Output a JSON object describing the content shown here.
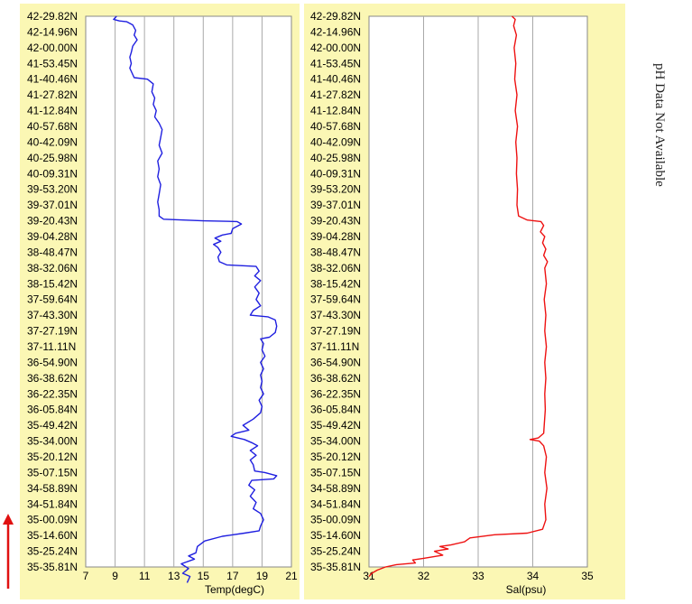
{
  "chart_data": [
    {
      "type": "line",
      "orientation": "vertical-profile",
      "xlabel": "Temp(degC)",
      "xlim": [
        7,
        21
      ],
      "xticks": [
        7,
        9,
        11,
        13,
        15,
        17,
        19,
        21
      ],
      "grid": "vertical",
      "background": "#fbf7b4",
      "line_color": "#1f1fe0",
      "y_tick_labels": [
        "42-29.82N",
        "42-14.96N",
        "42-00.00N",
        "41-53.45N",
        "41-40.46N",
        "41-27.82N",
        "41-12.84N",
        "40-57.68N",
        "40-42.09N",
        "40-25.98N",
        "40-09.31N",
        "39-53.20N",
        "39-37.01N",
        "39-20.43N",
        "39-04.28N",
        "38-48.47N",
        "38-32.06N",
        "38-15.42N",
        "37-59.64N",
        "37-43.30N",
        "37-27.19N",
        "37-11.11N",
        "36-54.90N",
        "36-38.62N",
        "36-22.35N",
        "36-05.84N",
        "35-49.42N",
        "35-34.00N",
        "35-20.12N",
        "35-07.15N",
        "34-58.89N",
        "34-51.84N",
        "35-00.09N",
        "35-14.60N",
        "35-25.24N",
        "35-35.81N"
      ],
      "series": [
        {
          "values": [
            [
              9.1,
              0
            ],
            [
              8.9,
              0.2
            ],
            [
              9.3,
              0.3
            ],
            [
              9.8,
              0.35
            ],
            [
              10.2,
              0.55
            ],
            [
              10.4,
              0.9
            ],
            [
              10.3,
              1.2
            ],
            [
              10.5,
              1.5
            ],
            [
              10.2,
              1.9
            ],
            [
              10.1,
              2.3
            ],
            [
              10.0,
              2.6
            ],
            [
              10.1,
              3.0
            ],
            [
              10.0,
              3.3
            ],
            [
              10.2,
              3.7
            ],
            [
              10.3,
              3.9
            ],
            [
              11.2,
              4.0
            ],
            [
              11.6,
              4.3
            ],
            [
              11.5,
              4.8
            ],
            [
              11.7,
              5.2
            ],
            [
              11.6,
              5.6
            ],
            [
              11.8,
              6.0
            ],
            [
              11.7,
              6.4
            ],
            [
              12.0,
              6.8
            ],
            [
              12.2,
              7.2
            ],
            [
              12.1,
              7.7
            ],
            [
              12.0,
              8.2
            ],
            [
              12.2,
              8.7
            ],
            [
              11.9,
              9.2
            ],
            [
              12.0,
              9.7
            ],
            [
              11.9,
              10.2
            ],
            [
              12.1,
              10.7
            ],
            [
              12.0,
              11.3
            ],
            [
              11.9,
              11.8
            ],
            [
              12.0,
              12.3
            ],
            [
              12.0,
              12.7
            ],
            [
              12.3,
              12.9
            ],
            [
              15.0,
              13.0
            ],
            [
              17.3,
              13.05
            ],
            [
              17.6,
              13.2
            ],
            [
              17.0,
              13.5
            ],
            [
              16.9,
              13.8
            ],
            [
              16.3,
              13.9
            ],
            [
              15.8,
              14.1
            ],
            [
              16.2,
              14.3
            ],
            [
              15.7,
              14.5
            ],
            [
              16.0,
              14.7
            ],
            [
              16.2,
              15.0
            ],
            [
              16.0,
              15.3
            ],
            [
              16.1,
              15.6
            ],
            [
              16.6,
              15.8
            ],
            [
              18.6,
              15.9
            ],
            [
              18.8,
              16.2
            ],
            [
              18.5,
              16.5
            ],
            [
              18.9,
              16.8
            ],
            [
              18.5,
              17.2
            ],
            [
              18.8,
              17.6
            ],
            [
              18.6,
              18.0
            ],
            [
              18.9,
              18.4
            ],
            [
              18.4,
              18.7
            ],
            [
              18.2,
              19.0
            ],
            [
              19.4,
              19.1
            ],
            [
              19.9,
              19.3
            ],
            [
              20.0,
              19.7
            ],
            [
              19.9,
              20.1
            ],
            [
              19.5,
              20.4
            ],
            [
              18.9,
              20.5
            ],
            [
              19.1,
              20.8
            ],
            [
              19.0,
              21.2
            ],
            [
              19.2,
              21.6
            ],
            [
              18.9,
              22.0
            ],
            [
              19.1,
              22.4
            ],
            [
              18.9,
              22.8
            ],
            [
              19.0,
              23.2
            ],
            [
              18.9,
              23.6
            ],
            [
              19.1,
              24.0
            ],
            [
              18.8,
              24.4
            ],
            [
              19.0,
              24.8
            ],
            [
              18.9,
              25.2
            ],
            [
              18.4,
              25.6
            ],
            [
              17.7,
              26.0
            ],
            [
              18.1,
              26.3
            ],
            [
              17.2,
              26.5
            ],
            [
              16.9,
              26.7
            ],
            [
              17.8,
              26.9
            ],
            [
              18.3,
              27.1
            ],
            [
              18.7,
              27.3
            ],
            [
              18.2,
              27.6
            ],
            [
              18.6,
              27.9
            ],
            [
              18.2,
              28.2
            ],
            [
              18.4,
              28.5
            ],
            [
              18.5,
              28.9
            ],
            [
              19.2,
              29.0
            ],
            [
              20.0,
              29.2
            ],
            [
              19.8,
              29.4
            ],
            [
              18.3,
              29.5
            ],
            [
              18.1,
              29.8
            ],
            [
              18.5,
              30.1
            ],
            [
              18.2,
              30.5
            ],
            [
              18.6,
              30.9
            ],
            [
              18.4,
              31.3
            ],
            [
              18.9,
              31.6
            ],
            [
              19.1,
              32.0
            ],
            [
              18.9,
              32.4
            ],
            [
              18.8,
              32.7
            ],
            [
              17.8,
              32.85
            ],
            [
              16.3,
              33.05
            ],
            [
              15.1,
              33.35
            ],
            [
              14.6,
              33.7
            ],
            [
              14.5,
              34.1
            ],
            [
              14.0,
              34.3
            ],
            [
              14.4,
              34.5
            ],
            [
              13.5,
              34.8
            ],
            [
              14.0,
              35.1
            ],
            [
              13.6,
              35.4
            ],
            [
              14.1,
              35.6
            ],
            [
              13.9,
              36
            ]
          ]
        }
      ]
    },
    {
      "type": "line",
      "orientation": "vertical-profile",
      "xlabel": "Sal(psu)",
      "xlim": [
        31,
        35
      ],
      "xticks": [
        31,
        32,
        33,
        34,
        35
      ],
      "grid": "vertical",
      "background": "#fbf7b4",
      "line_color": "#ee1111",
      "y_tick_labels": [
        "42-29.82N",
        "42-14.96N",
        "42-00.00N",
        "41-53.45N",
        "41-40.46N",
        "41-27.82N",
        "41-12.84N",
        "40-57.68N",
        "40-42.09N",
        "40-25.98N",
        "40-09.31N",
        "39-53.20N",
        "39-37.01N",
        "39-20.43N",
        "39-04.28N",
        "38-48.47N",
        "38-32.06N",
        "38-15.42N",
        "37-59.64N",
        "37-43.30N",
        "37-27.19N",
        "37-11.11N",
        "36-54.90N",
        "36-38.62N",
        "36-22.35N",
        "36-05.84N",
        "35-49.42N",
        "35-34.00N",
        "35-20.12N",
        "35-07.15N",
        "34-58.89N",
        "34-51.84N",
        "35-00.09N",
        "35-14.60N",
        "35-25.24N",
        "35-35.81N"
      ],
      "series": [
        {
          "values": [
            [
              33.62,
              0
            ],
            [
              33.68,
              0.2
            ],
            [
              33.65,
              0.6
            ],
            [
              33.7,
              1.2
            ],
            [
              33.66,
              2.0
            ],
            [
              33.69,
              3.0
            ],
            [
              33.67,
              4.0
            ],
            [
              33.71,
              5.0
            ],
            [
              33.68,
              6.0
            ],
            [
              33.72,
              7.0
            ],
            [
              33.69,
              8.0
            ],
            [
              33.71,
              9.0
            ],
            [
              33.7,
              10.0
            ],
            [
              33.72,
              11.0
            ],
            [
              33.71,
              12.0
            ],
            [
              33.74,
              12.7
            ],
            [
              33.9,
              12.95
            ],
            [
              34.15,
              13.05
            ],
            [
              34.2,
              13.3
            ],
            [
              34.14,
              13.7
            ],
            [
              34.22,
              14.0
            ],
            [
              34.18,
              14.4
            ],
            [
              34.24,
              14.8
            ],
            [
              34.2,
              15.2
            ],
            [
              34.27,
              15.6
            ],
            [
              34.22,
              16.0
            ],
            [
              34.25,
              17.0
            ],
            [
              34.21,
              18.0
            ],
            [
              34.24,
              19.0
            ],
            [
              34.22,
              20.0
            ],
            [
              34.25,
              21.0
            ],
            [
              34.22,
              22.0
            ],
            [
              34.24,
              23.0
            ],
            [
              34.22,
              24.0
            ],
            [
              34.23,
              25.0
            ],
            [
              34.21,
              26.0
            ],
            [
              34.2,
              26.5
            ],
            [
              34.1,
              26.8
            ],
            [
              33.95,
              26.9
            ],
            [
              34.12,
              27.0
            ],
            [
              34.2,
              27.3
            ],
            [
              34.25,
              28.0
            ],
            [
              34.22,
              29.0
            ],
            [
              34.26,
              30.0
            ],
            [
              34.22,
              31.0
            ],
            [
              34.24,
              32.0
            ],
            [
              34.18,
              32.6
            ],
            [
              33.9,
              32.85
            ],
            [
              33.3,
              32.95
            ],
            [
              32.85,
              33.15
            ],
            [
              32.75,
              33.4
            ],
            [
              32.5,
              33.6
            ],
            [
              32.3,
              33.7
            ],
            [
              32.45,
              33.85
            ],
            [
              32.2,
              34.0
            ],
            [
              32.35,
              34.25
            ],
            [
              32.0,
              34.45
            ],
            [
              31.8,
              34.55
            ],
            [
              31.85,
              34.75
            ],
            [
              31.5,
              34.85
            ],
            [
              31.3,
              35.0
            ],
            [
              31.15,
              35.2
            ],
            [
              31.05,
              35.4
            ],
            [
              31.0,
              35.6
            ]
          ]
        }
      ]
    }
  ],
  "side_note": "pH Data Not Available",
  "colors": {
    "arrow": "#e01010",
    "gridline": "#a9a9a9",
    "frame": "#888888"
  }
}
